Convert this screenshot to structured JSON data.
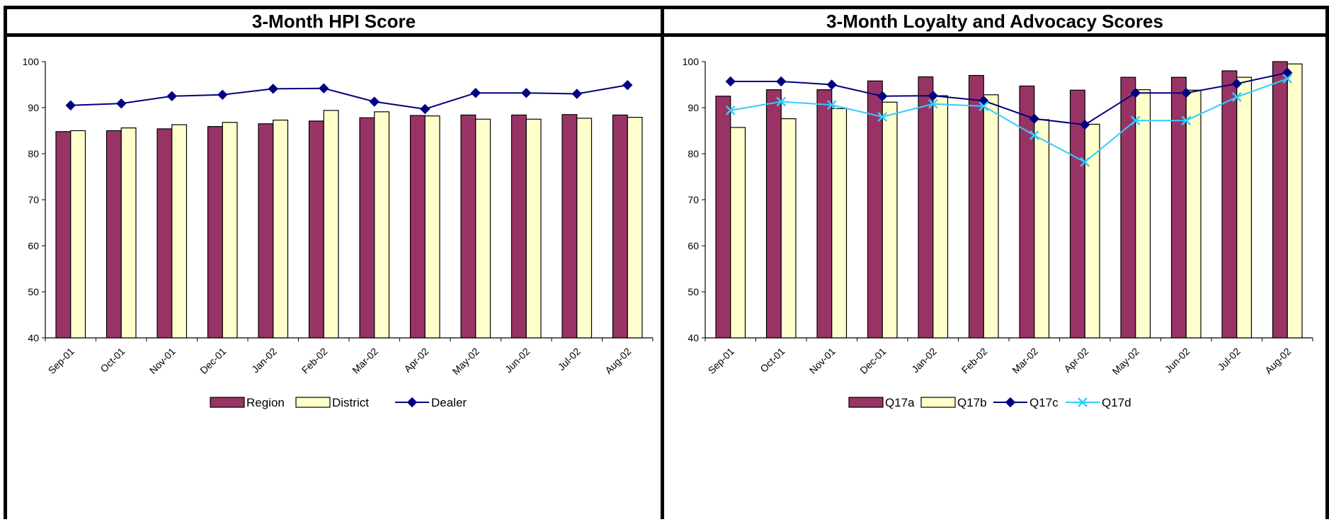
{
  "chart_data": [
    {
      "type": "bar",
      "title": "3-Month HPI Score",
      "categories": [
        "Sep-01",
        "Oct-01",
        "Nov-01",
        "Dec-01",
        "Jan-02",
        "Feb-02",
        "Mar-02",
        "Apr-02",
        "May-02",
        "Jun-02",
        "Jul-02",
        "Aug-02"
      ],
      "ylim": [
        40,
        100
      ],
      "yticks": [
        40,
        50,
        60,
        70,
        80,
        90,
        100
      ],
      "grid": false,
      "legend_position": "bottom",
      "series": [
        {
          "name": "Region",
          "kind": "bar",
          "color": "#993366",
          "values": [
            84.8,
            85.0,
            85.4,
            85.9,
            86.5,
            87.1,
            87.8,
            88.3,
            88.4,
            88.4,
            88.5,
            88.4
          ]
        },
        {
          "name": "District",
          "kind": "bar",
          "color": "#FFFFCC",
          "values": [
            85.0,
            85.6,
            86.3,
            86.8,
            87.3,
            89.4,
            89.1,
            88.2,
            87.5,
            87.5,
            87.7,
            87.9
          ]
        },
        {
          "name": "Dealer",
          "kind": "line",
          "marker": "diamond",
          "color": "#000080",
          "values": [
            90.5,
            90.9,
            92.5,
            92.8,
            94.1,
            94.2,
            91.3,
            89.7,
            93.2,
            93.2,
            93.0,
            94.9
          ]
        }
      ]
    },
    {
      "type": "bar",
      "title": "3-Month Loyalty and Advocacy Scores",
      "categories": [
        "Sep-01",
        "Oct-01",
        "Nov-01",
        "Dec-01",
        "Jan-02",
        "Feb-02",
        "Mar-02",
        "Apr-02",
        "May-02",
        "Jun-02",
        "Jul-02",
        "Aug-02"
      ],
      "ylim": [
        40,
        100
      ],
      "yticks": [
        40,
        50,
        60,
        70,
        80,
        90,
        100
      ],
      "grid": false,
      "legend_position": "bottom",
      "series": [
        {
          "name": "Q17a",
          "kind": "bar",
          "color": "#993366",
          "values": [
            92.5,
            93.9,
            93.9,
            95.8,
            96.7,
            97.0,
            94.7,
            93.8,
            96.6,
            96.6,
            98.0,
            100.0
          ]
        },
        {
          "name": "Q17b",
          "kind": "bar",
          "color": "#FFFFCC",
          "values": [
            85.7,
            87.6,
            89.8,
            91.2,
            92.6,
            92.8,
            87.4,
            86.4,
            93.9,
            93.8,
            96.6,
            99.5
          ]
        },
        {
          "name": "Q17c",
          "kind": "line",
          "marker": "diamond",
          "color": "#000080",
          "values": [
            95.7,
            95.7,
            95.0,
            92.5,
            92.6,
            91.5,
            87.6,
            86.3,
            93.2,
            93.2,
            95.2,
            97.6
          ]
        },
        {
          "name": "Q17d",
          "kind": "line",
          "marker": "x",
          "color": "#33CCFF",
          "values": [
            89.4,
            91.3,
            90.6,
            88.0,
            90.8,
            90.3,
            84.0,
            78.2,
            87.2,
            87.2,
            92.3,
            96.3
          ]
        }
      ]
    }
  ]
}
